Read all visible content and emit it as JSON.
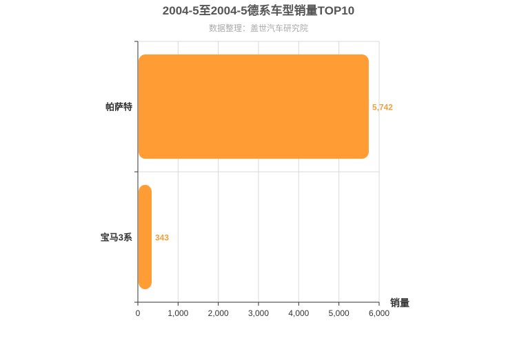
{
  "chart_data": {
    "type": "bar",
    "orientation": "horizontal",
    "title": "2004-5至2004-5德系车型销量TOP10",
    "subtitle": "数据整理：盖世汽车研究院",
    "categories": [
      "帕萨特",
      "宝马3系"
    ],
    "values": [
      5742,
      343
    ],
    "value_labels": [
      "5,742",
      "343"
    ],
    "xlabel": "销量",
    "xlim": [
      0,
      6000
    ],
    "x_ticks": [
      0,
      1000,
      2000,
      3000,
      4000,
      5000,
      6000
    ],
    "x_tick_labels": [
      "0",
      "1,000",
      "2,000",
      "3,000",
      "4,000",
      "5,000",
      "6,000"
    ],
    "grid": true,
    "bar_color": "#ff9c33",
    "label_color": "#f0a040"
  }
}
